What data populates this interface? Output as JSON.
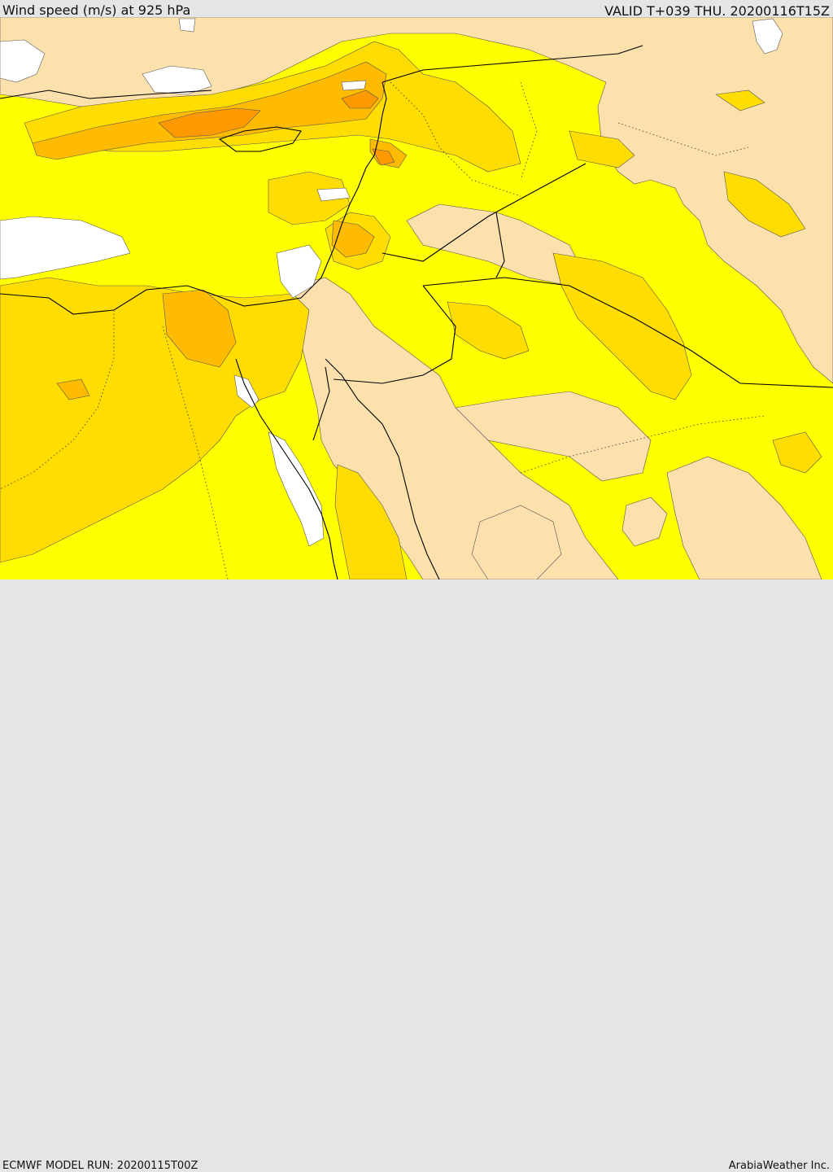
{
  "header": {
    "title": "Wind speed (m/s) at 925 hPa",
    "valid": "VALID T+039 THU. 20200116T15Z"
  },
  "footer": {
    "model_run": "ECMWF MODEL RUN: 20200115T00Z",
    "brand": "ArabiaWeather Inc."
  },
  "palette": {
    "calm": "#ffffff",
    "light": "#fde1ad",
    "moderate": "#ffff00",
    "fresh": "#ffdd00",
    "strong": "#ffbb00",
    "gale": "#ff9900",
    "border": "#000000"
  }
}
